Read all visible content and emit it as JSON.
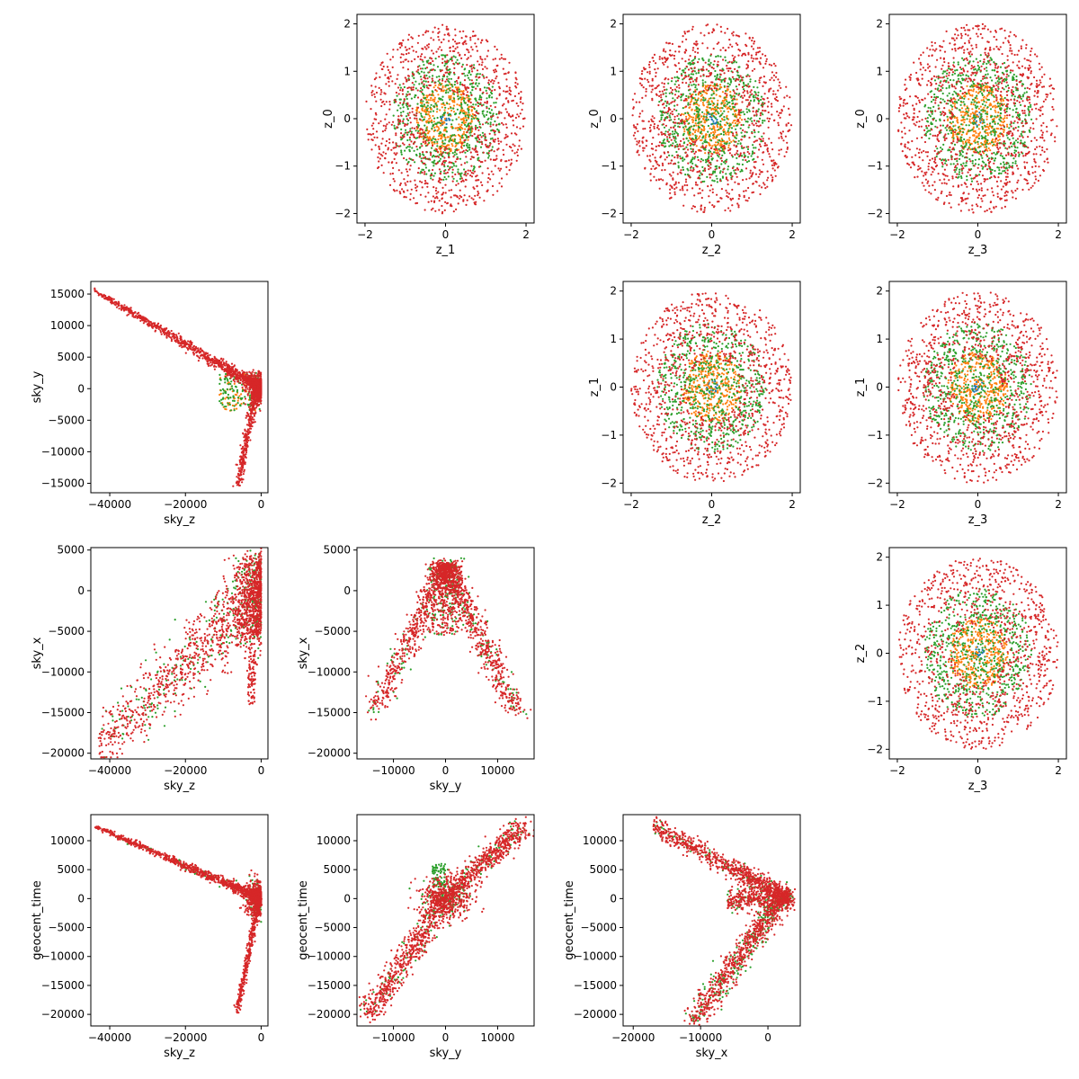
{
  "chart_data": {
    "type": "scatter",
    "layout": "corner-plot",
    "series_colors": {
      "blue": "#1f77b4",
      "orange": "#ff7f0e",
      "green": "#2ca02c",
      "red": "#d62728"
    },
    "panels": [
      {
        "id": "z1-z0",
        "xlabel": "z_1",
        "ylabel": "z_0",
        "xlim": [
          -2.2,
          2.2
        ],
        "ylim": [
          -2.2,
          2.2
        ],
        "xticks": [
          -2,
          0,
          2
        ],
        "yticks": [
          -2,
          -1,
          0,
          1,
          2
        ],
        "kind": "gaussian"
      },
      {
        "id": "z2-z0",
        "xlabel": "z_2",
        "ylabel": "z_0",
        "xlim": [
          -2.2,
          2.2
        ],
        "ylim": [
          -2.2,
          2.2
        ],
        "xticks": [
          -2,
          0,
          2
        ],
        "yticks": [
          -2,
          -1,
          0,
          1,
          2
        ],
        "kind": "gaussian"
      },
      {
        "id": "z3-z0",
        "xlabel": "z_3",
        "ylabel": "z_0",
        "xlim": [
          -2.2,
          2.2
        ],
        "ylim": [
          -2.2,
          2.2
        ],
        "xticks": [
          -2,
          0,
          2
        ],
        "yticks": [
          -2,
          -1,
          0,
          1,
          2
        ],
        "kind": "gaussian"
      },
      {
        "id": "skyz-skyy",
        "xlabel": "sky_z",
        "ylabel": "sky_y",
        "xlim": [
          -45000,
          1800
        ],
        "ylim": [
          -16500,
          17000
        ],
        "xticks": [
          -40000,
          -20000,
          0
        ],
        "yticks": [
          -15000,
          -10000,
          -5000,
          0,
          5000,
          10000,
          15000
        ],
        "kind": "skyz_skyy"
      },
      {
        "id": "z2-z1",
        "xlabel": "z_2",
        "ylabel": "z_1",
        "xlim": [
          -2.2,
          2.2
        ],
        "ylim": [
          -2.2,
          2.2
        ],
        "xticks": [
          -2,
          0,
          2
        ],
        "yticks": [
          -2,
          -1,
          0,
          1,
          2
        ],
        "kind": "gaussian"
      },
      {
        "id": "z3-z1",
        "xlabel": "z_3",
        "ylabel": "z_1",
        "xlim": [
          -2.2,
          2.2
        ],
        "ylim": [
          -2.2,
          2.2
        ],
        "xticks": [
          -2,
          0,
          2
        ],
        "yticks": [
          -2,
          -1,
          0,
          1,
          2
        ],
        "kind": "gaussian"
      },
      {
        "id": "skyz-skyx",
        "xlabel": "sky_z",
        "ylabel": "sky_x",
        "xlim": [
          -45000,
          1800
        ],
        "ylim": [
          -20700,
          5300
        ],
        "xticks": [
          -40000,
          -20000,
          0
        ],
        "yticks": [
          -20000,
          -15000,
          -10000,
          -5000,
          0,
          5000
        ],
        "kind": "skyz_skyx"
      },
      {
        "id": "skyy-skyx",
        "xlabel": "sky_y",
        "ylabel": "sky_x",
        "xlim": [
          -17000,
          17000
        ],
        "ylim": [
          -20700,
          5300
        ],
        "xticks": [
          -10000,
          0,
          10000
        ],
        "yticks": [
          -20000,
          -15000,
          -10000,
          -5000,
          0,
          5000
        ],
        "kind": "skyy_skyx"
      },
      {
        "id": "z3-z2",
        "xlabel": "z_3",
        "ylabel": "z_2",
        "xlim": [
          -2.2,
          2.2
        ],
        "ylim": [
          -2.2,
          2.2
        ],
        "xticks": [
          -2,
          0,
          2
        ],
        "yticks": [
          -2,
          -1,
          0,
          1,
          2
        ],
        "kind": "gaussian"
      },
      {
        "id": "skyz-geocent",
        "xlabel": "sky_z",
        "ylabel": "geocent_time",
        "xlim": [
          -45000,
          1800
        ],
        "ylim": [
          -22000,
          14500
        ],
        "xticks": [
          -40000,
          -20000,
          0
        ],
        "yticks": [
          -20000,
          -15000,
          -10000,
          -5000,
          0,
          5000,
          10000
        ],
        "kind": "skyz_geo"
      },
      {
        "id": "skyy-geocent",
        "xlabel": "sky_y",
        "ylabel": "geocent_time",
        "xlim": [
          -17000,
          17000
        ],
        "ylim": [
          -22000,
          14500
        ],
        "xticks": [
          -10000,
          0,
          10000
        ],
        "yticks": [
          -20000,
          -15000,
          -10000,
          -5000,
          0,
          5000,
          10000
        ],
        "kind": "skyy_geo"
      },
      {
        "id": "skyx-geocent",
        "xlabel": "sky_x",
        "ylabel": "geocent_time",
        "xlim": [
          -21500,
          4800
        ],
        "ylim": [
          -22000,
          14500
        ],
        "xticks": [
          -20000,
          -10000,
          0
        ],
        "yticks": [
          -20000,
          -15000,
          -10000,
          -5000,
          0,
          5000,
          10000
        ],
        "kind": "skyx_geo"
      }
    ]
  }
}
